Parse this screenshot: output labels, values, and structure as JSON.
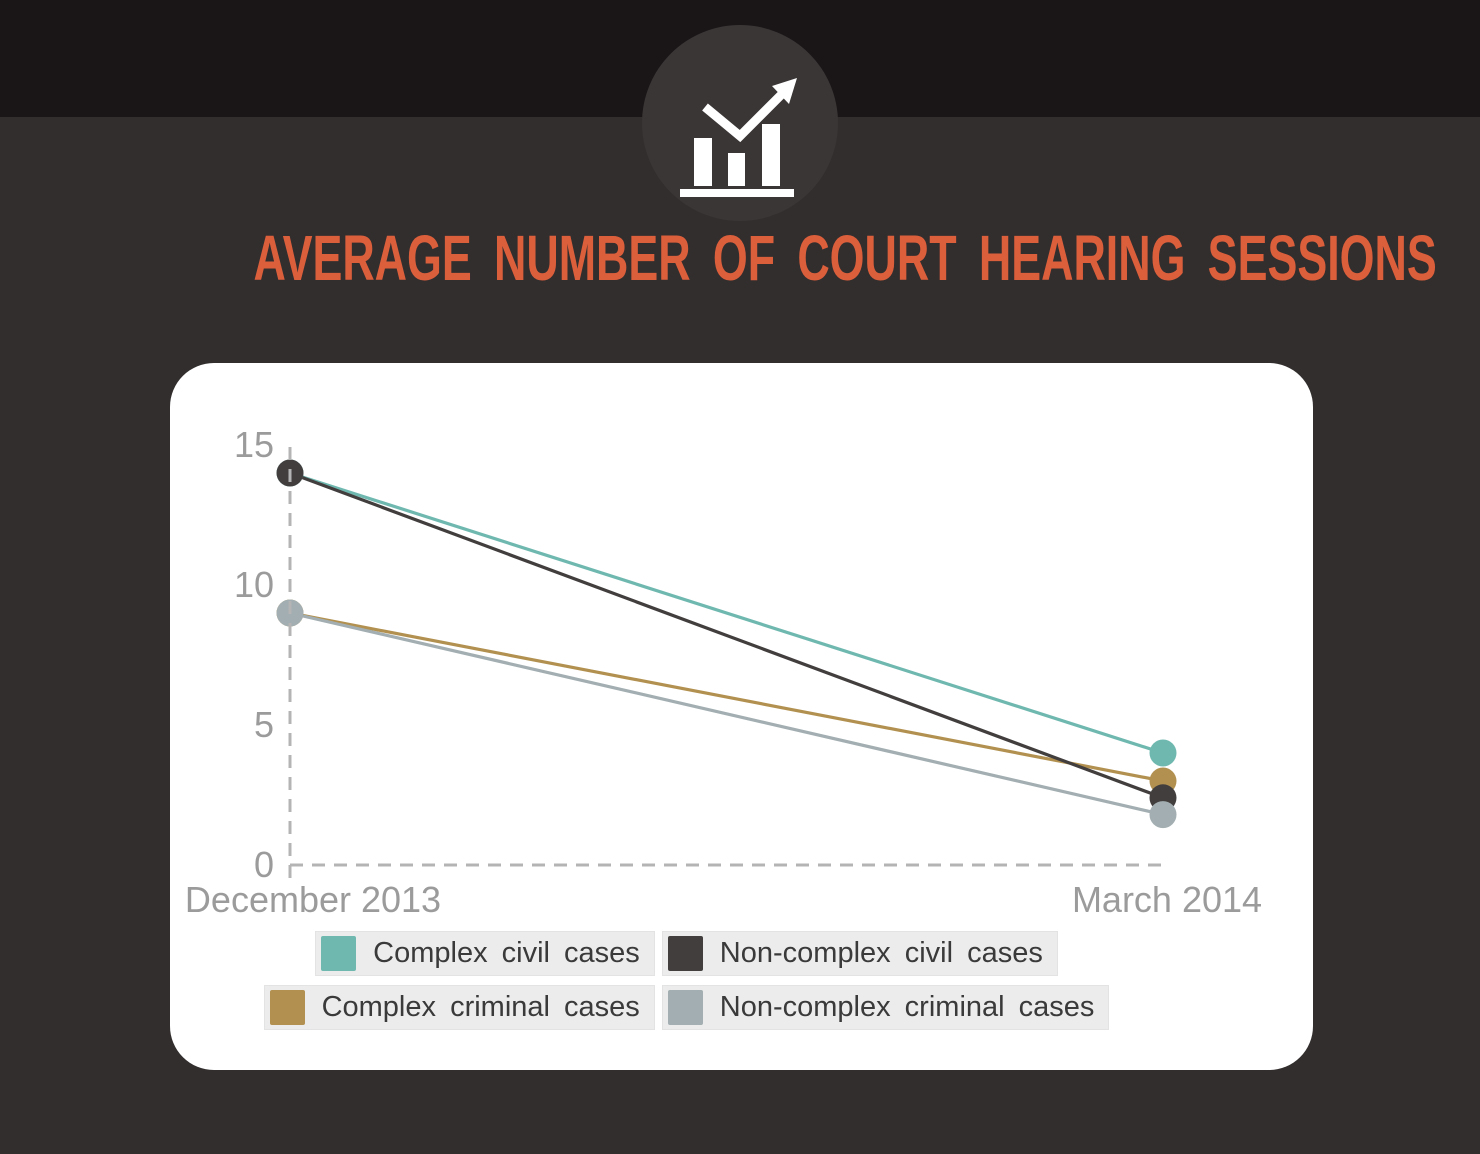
{
  "header": {
    "title": "AVERAGE NUMBER OF COURT HEARING SESSIONS",
    "title_color": "#dc5f3c",
    "icon": "bar-chart-trend-icon"
  },
  "chart_data": {
    "type": "line",
    "title": "Average number of court hearing sessions",
    "x_categories": [
      "December 2013",
      "March 2014"
    ],
    "y_ticks": [
      0,
      5,
      10,
      15
    ],
    "ylim": [
      0,
      15.5
    ],
    "grid": "dashed axis lines only",
    "legend_position": "bottom",
    "series": [
      {
        "name": "Complex civil cases",
        "color": "#6fb8b0",
        "values": [
          14,
          4
        ]
      },
      {
        "name": "Complex criminal cases",
        "color": "#b29150",
        "values": [
          9,
          3
        ]
      },
      {
        "name": "Non-complex civil cases",
        "color": "#423e3e",
        "values": [
          14,
          2.4
        ]
      },
      {
        "name": "Non-complex criminal cases",
        "color": "#a2aeb1",
        "values": [
          9,
          1.8
        ]
      }
    ],
    "legend_rows": [
      [
        0,
        2
      ],
      [
        1,
        3
      ]
    ]
  },
  "palette": {
    "page_background": "#332e2e",
    "top_band": "#1a1618",
    "icon_circle": "#3b3636",
    "card_background": "#ffffff",
    "axis_dash": "#b4b4b4",
    "axis_text": "#9b9b9b",
    "legend_box": "#ececec",
    "legend_text": "#3a3a3a"
  }
}
